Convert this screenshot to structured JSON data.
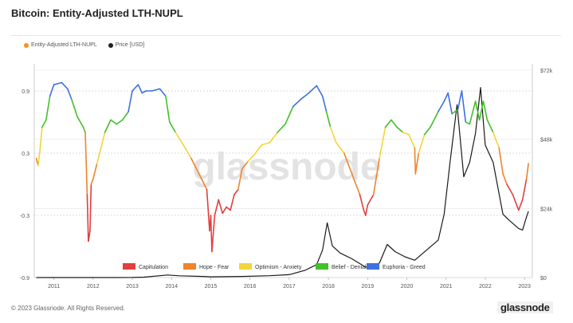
{
  "title": "Bitcoin: Entity-Adjusted LTH-NUPL",
  "footer": "© 2023 Glassnode. All Rights Reserved.",
  "brand": "glassnode",
  "watermark": "glassnode",
  "legend": [
    {
      "label": "Entity-Adjusted LTH-NUPL",
      "color": "#f7931a"
    },
    {
      "label": "Price [USD]",
      "color": "#222222"
    }
  ],
  "chart_data": {
    "type": "line",
    "y_left_ticks": [
      "0.9",
      "0.3",
      "-0.3",
      "-0.9"
    ],
    "y_left_range": [
      -0.9,
      1.1
    ],
    "y_right_ticks": [
      "$72k",
      "$48k",
      "$24k",
      "$0"
    ],
    "y_right_range": [
      0,
      72000
    ],
    "x_ticks": [
      "2011",
      "2012",
      "2013",
      "2014",
      "2015",
      "2016",
      "2017",
      "2018",
      "2019",
      "2020",
      "2021",
      "2022",
      "2023"
    ],
    "x_range": [
      2010.5,
      2023.2
    ],
    "zone_legend": [
      {
        "label": "Capitulation",
        "color": "#e0403f"
      },
      {
        "label": "Hope - Fear",
        "color": "#f0842b"
      },
      {
        "label": "Optimism - Anxiety",
        "color": "#f2d53c"
      },
      {
        "label": "Belief - Denial",
        "color": "#43c02a"
      },
      {
        "label": "Euphoria - Greed",
        "color": "#3f6fe0"
      }
    ],
    "zone_thresholds": [
      0,
      0.25,
      0.5,
      0.75
    ],
    "series": [
      {
        "name": "Entity-Adjusted LTH-NUPL",
        "x": [
          2010.55,
          2010.6,
          2010.65,
          2010.7,
          2010.8,
          2010.9,
          2011.0,
          2011.2,
          2011.35,
          2011.45,
          2011.6,
          2011.75,
          2011.8,
          2011.85,
          2011.88,
          2011.92,
          2011.95,
          2012.0,
          2012.1,
          2012.2,
          2012.3,
          2012.45,
          2012.6,
          2012.75,
          2012.9,
          2013.0,
          2013.15,
          2013.25,
          2013.35,
          2013.5,
          2013.7,
          2013.85,
          2013.95,
          2014.1,
          2014.3,
          2014.5,
          2014.7,
          2014.9,
          2014.97,
          2015.0,
          2015.03,
          2015.1,
          2015.2,
          2015.3,
          2015.4,
          2015.5,
          2015.6,
          2015.7,
          2015.8,
          2015.95,
          2016.1,
          2016.3,
          2016.5,
          2016.7,
          2016.9,
          2017.1,
          2017.3,
          2017.5,
          2017.7,
          2017.85,
          2017.95,
          2018.05,
          2018.2,
          2018.4,
          2018.6,
          2018.8,
          2018.9,
          2018.95,
          2019.0,
          2019.15,
          2019.3,
          2019.45,
          2019.6,
          2019.75,
          2019.9,
          2020.05,
          2020.2,
          2020.22,
          2020.3,
          2020.45,
          2020.6,
          2020.8,
          2020.95,
          2021.05,
          2021.15,
          2021.3,
          2021.4,
          2021.5,
          2021.6,
          2021.75,
          2021.85,
          2021.95,
          2022.05,
          2022.2,
          2022.35,
          2022.45,
          2022.55,
          2022.7,
          2022.85,
          2022.95,
          2023.05,
          2023.1
        ],
        "values": [
          0.25,
          0.18,
          0.35,
          0.55,
          0.62,
          0.85,
          0.96,
          0.98,
          0.92,
          0.82,
          0.65,
          0.55,
          0.5,
          -0.1,
          -0.55,
          -0.45,
          0.0,
          0.05,
          0.2,
          0.35,
          0.5,
          0.62,
          0.58,
          0.62,
          0.7,
          0.9,
          0.96,
          0.88,
          0.9,
          0.9,
          0.92,
          0.85,
          0.6,
          0.5,
          0.38,
          0.25,
          0.1,
          -0.05,
          -0.45,
          -0.3,
          -0.65,
          -0.3,
          -0.15,
          -0.28,
          -0.22,
          -0.25,
          -0.1,
          -0.05,
          0.15,
          0.22,
          0.28,
          0.38,
          0.4,
          0.5,
          0.58,
          0.75,
          0.82,
          0.88,
          0.95,
          0.85,
          0.7,
          0.55,
          0.4,
          0.3,
          0.1,
          -0.1,
          -0.25,
          -0.3,
          -0.2,
          -0.1,
          0.25,
          0.55,
          0.62,
          0.55,
          0.5,
          0.48,
          0.35,
          0.1,
          0.3,
          0.48,
          0.55,
          0.7,
          0.8,
          0.88,
          0.68,
          0.72,
          0.9,
          0.6,
          0.58,
          0.8,
          0.62,
          0.8,
          0.62,
          0.5,
          0.35,
          0.1,
          0.0,
          -0.1,
          -0.25,
          -0.15,
          0.05,
          0.2
        ]
      },
      {
        "name": "Price [USD]",
        "x": [
          2010.55,
          2011.0,
          2011.5,
          2012.0,
          2012.5,
          2013.0,
          2013.3,
          2013.9,
          2014.2,
          2014.8,
          2015.0,
          2015.8,
          2016.5,
          2017.0,
          2017.4,
          2017.7,
          2017.85,
          2017.97,
          2018.1,
          2018.3,
          2018.6,
          2018.95,
          2019.3,
          2019.5,
          2019.7,
          2019.95,
          2020.2,
          2020.5,
          2020.8,
          2020.95,
          2021.1,
          2021.28,
          2021.45,
          2021.6,
          2021.75,
          2021.88,
          2022.0,
          2022.2,
          2022.45,
          2022.6,
          2022.85,
          2022.95,
          2023.05,
          2023.1
        ],
        "values": [
          0,
          1,
          10,
          6,
          10,
          14,
          150,
          900,
          600,
          400,
          250,
          380,
          650,
          1000,
          2500,
          4500,
          9500,
          19000,
          11000,
          8500,
          6500,
          3600,
          5000,
          11500,
          9000,
          7200,
          6000,
          9500,
          13000,
          22000,
          40000,
          60000,
          35000,
          40000,
          50000,
          66000,
          46000,
          40000,
          22000,
          20000,
          17000,
          16500,
          21000,
          23000
        ]
      }
    ]
  }
}
